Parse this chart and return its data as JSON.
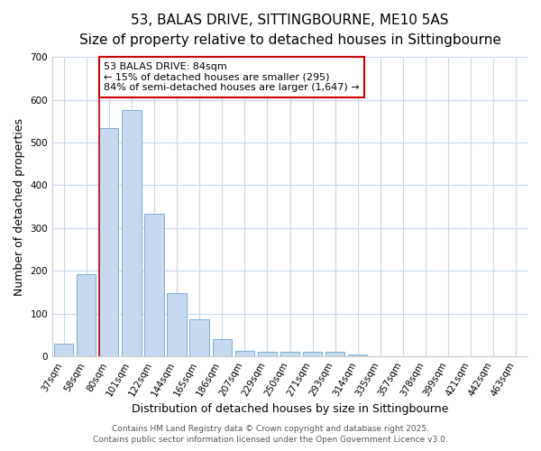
{
  "title1": "53, BALAS DRIVE, SITTINGBOURNE, ME10 5AS",
  "title2": "Size of property relative to detached houses in Sittingbourne",
  "xlabel": "Distribution of detached houses by size in Sittingbourne",
  "ylabel": "Number of detached properties",
  "categories": [
    "37sqm",
    "58sqm",
    "80sqm",
    "101sqm",
    "122sqm",
    "144sqm",
    "165sqm",
    "186sqm",
    "207sqm",
    "229sqm",
    "250sqm",
    "271sqm",
    "293sqm",
    "314sqm",
    "335sqm",
    "357sqm",
    "378sqm",
    "399sqm",
    "421sqm",
    "442sqm",
    "463sqm"
  ],
  "values": [
    30,
    193,
    533,
    575,
    333,
    148,
    87,
    40,
    13,
    10,
    10,
    10,
    10,
    5,
    0,
    0,
    0,
    0,
    0,
    0,
    0
  ],
  "bar_color": "#c5d9f0",
  "bar_edge_color": "#7aadd4",
  "background_color": "#ffffff",
  "plot_bg_color": "#ffffff",
  "grid_color": "#c8d8ec",
  "vline_color": "#cc0000",
  "annotation_title": "53 BALAS DRIVE: 84sqm",
  "annotation_line1": "← 15% of detached houses are smaller (295)",
  "annotation_line2": "84% of semi-detached houses are larger (1,647) →",
  "annotation_box_color": "#cc0000",
  "ylim": [
    0,
    700
  ],
  "yticks": [
    0,
    100,
    200,
    300,
    400,
    500,
    600,
    700
  ],
  "footer1": "Contains HM Land Registry data © Crown copyright and database right 2025.",
  "footer2": "Contains public sector information licensed under the Open Government Licence v3.0.",
  "title_fontsize": 11,
  "subtitle_fontsize": 9.5,
  "axis_label_fontsize": 9,
  "tick_fontsize": 7.5,
  "annotation_fontsize": 8,
  "footer_fontsize": 6.5
}
